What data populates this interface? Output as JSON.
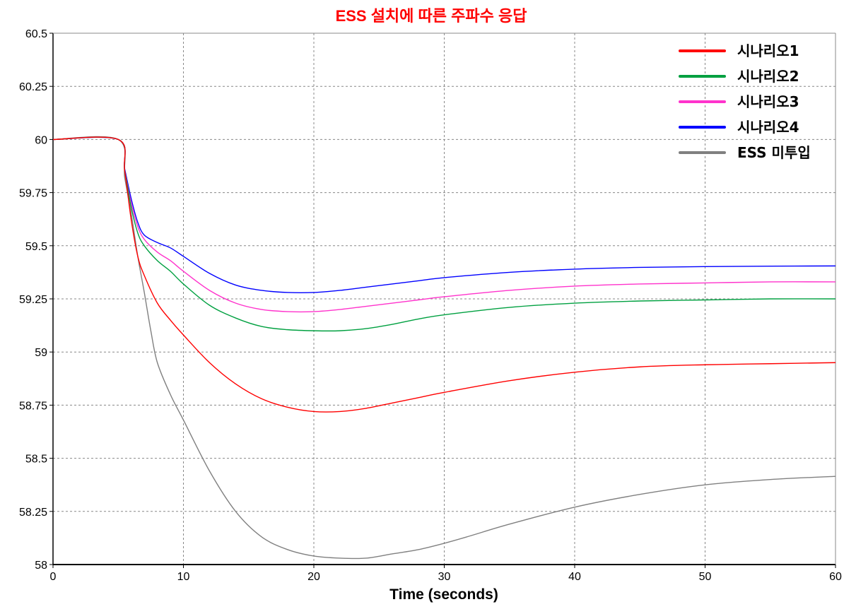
{
  "chart_data": {
    "type": "line",
    "title": "ESS 설치에 따른 주파수 응답",
    "title_color": "#ff0000",
    "xlabel": "Time (seconds)",
    "ylabel": "",
    "xlim": [
      0,
      60
    ],
    "ylim": [
      58,
      60.5
    ],
    "x_ticks": [
      0,
      10,
      20,
      30,
      40,
      50,
      60
    ],
    "x_tick_labels": [
      "0",
      "10",
      "20",
      "30",
      "40",
      "50",
      "60"
    ],
    "y_ticks": [
      58,
      58.25,
      58.5,
      58.75,
      59,
      59.25,
      59.5,
      59.75,
      60,
      60.25,
      60.5
    ],
    "y_tick_labels": [
      "58",
      "58.25",
      "58.5",
      "58.75",
      "59",
      "59.25",
      "59.5",
      "59.75",
      "60",
      "60.25",
      "60.5"
    ],
    "grid": true,
    "legend_position": "top-right",
    "series": [
      {
        "name": "시나리오1",
        "color": "#ff0000",
        "x": [
          0,
          5,
          5.5,
          6,
          6.5,
          7,
          8,
          9,
          10,
          12,
          14,
          16,
          18,
          20,
          22,
          24,
          26,
          28,
          30,
          35,
          40,
          45,
          50,
          55,
          60
        ],
        "y": [
          60,
          60,
          59.85,
          59.62,
          59.45,
          59.36,
          59.23,
          59.15,
          59.08,
          58.95,
          58.85,
          58.78,
          58.74,
          58.72,
          58.72,
          58.735,
          58.76,
          58.785,
          58.81,
          58.865,
          58.905,
          58.93,
          58.94,
          58.945,
          58.95
        ]
      },
      {
        "name": "시나리오2",
        "color": "#00a040",
        "x": [
          0,
          5,
          5.5,
          6,
          6.5,
          7,
          8,
          9,
          10,
          12,
          14,
          16,
          18,
          20,
          22,
          24,
          26,
          28,
          30,
          35,
          40,
          45,
          50,
          55,
          60
        ],
        "y": [
          60,
          60,
          59.85,
          59.68,
          59.56,
          59.5,
          59.43,
          59.38,
          59.32,
          59.22,
          59.16,
          59.12,
          59.105,
          59.1,
          59.1,
          59.11,
          59.13,
          59.155,
          59.175,
          59.21,
          59.23,
          59.24,
          59.245,
          59.25,
          59.25
        ]
      },
      {
        "name": "시나리오3",
        "color": "#ff33cc",
        "x": [
          0,
          5,
          5.5,
          6,
          6.5,
          7,
          8,
          9,
          10,
          12,
          14,
          16,
          18,
          20,
          22,
          24,
          26,
          28,
          30,
          35,
          40,
          45,
          50,
          55,
          60
        ],
        "y": [
          60,
          60,
          59.85,
          59.7,
          59.59,
          59.53,
          59.47,
          59.43,
          59.38,
          59.29,
          59.23,
          59.2,
          59.19,
          59.19,
          59.2,
          59.215,
          59.23,
          59.245,
          59.26,
          59.29,
          59.31,
          59.32,
          59.325,
          59.33,
          59.33
        ]
      },
      {
        "name": "시나리오4",
        "color": "#0000ff",
        "x": [
          0,
          5,
          5.5,
          6,
          6.5,
          7,
          8,
          9,
          10,
          12,
          14,
          16,
          18,
          20,
          22,
          24,
          26,
          28,
          30,
          35,
          40,
          45,
          50,
          55,
          60
        ],
        "y": [
          60,
          60,
          59.86,
          59.72,
          59.61,
          59.55,
          59.515,
          59.49,
          59.45,
          59.37,
          59.315,
          59.29,
          59.28,
          59.28,
          59.29,
          59.305,
          59.32,
          59.335,
          59.35,
          59.375,
          59.39,
          59.398,
          59.402,
          59.404,
          59.405
        ]
      },
      {
        "name": "ESS 미투입",
        "color": "#808080",
        "x": [
          0,
          5,
          5.5,
          6,
          6.5,
          7,
          7.5,
          8,
          9,
          10,
          12,
          14,
          16,
          18,
          20,
          22,
          24,
          26,
          28,
          30,
          32,
          35,
          40,
          45,
          50,
          55,
          60
        ],
        "y": [
          60,
          60,
          59.82,
          59.65,
          59.45,
          59.28,
          59.1,
          58.95,
          58.8,
          58.68,
          58.44,
          58.25,
          58.13,
          58.07,
          58.04,
          58.03,
          58.03,
          58.05,
          58.07,
          58.1,
          58.135,
          58.19,
          58.27,
          58.33,
          58.375,
          58.4,
          58.415
        ]
      }
    ]
  }
}
